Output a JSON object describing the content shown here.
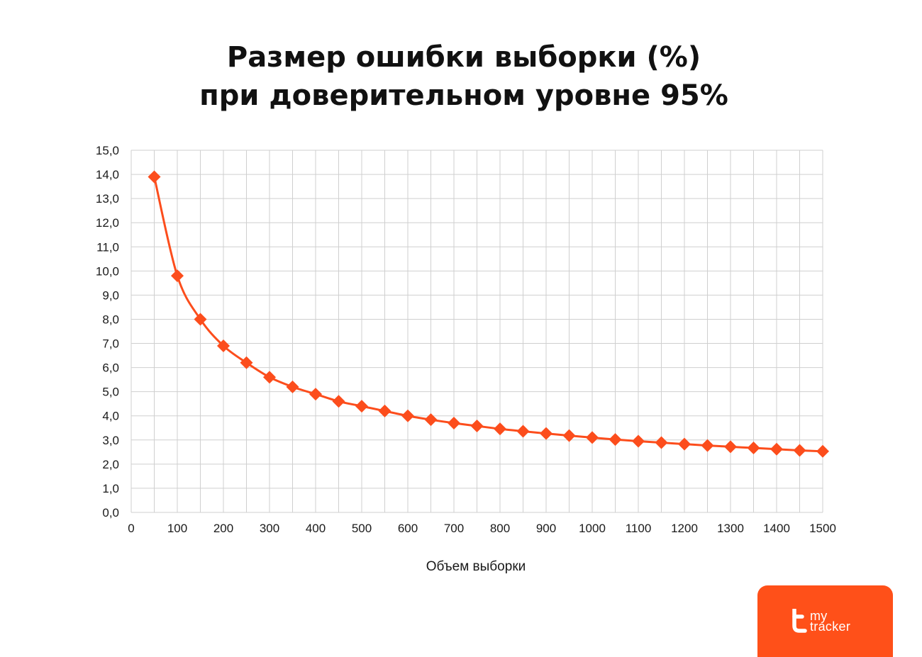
{
  "colors": {
    "series": "#fc4d1c",
    "grid": "#cfcfcf",
    "badge": "#ff5019",
    "text": "#1a1a1a"
  },
  "logo": {
    "line1": "my",
    "line2": "tracker",
    "icon": "mytracker-logo-icon"
  },
  "chart_data": {
    "type": "line",
    "title_lines": [
      "Размер ошибки выборки (%)",
      "при доверительном уровне 95%"
    ],
    "xlabel": "Объем выборки",
    "ylabel": "",
    "xlim": [
      0,
      1500
    ],
    "ylim": [
      0,
      15
    ],
    "x_tick_step": 50,
    "y_tick_step": 1,
    "x_tick_labels": [
      {
        "value": 0,
        "label": "0"
      },
      {
        "value": 100,
        "label": "100"
      },
      {
        "value": 200,
        "label": "200"
      },
      {
        "value": 300,
        "label": "300"
      },
      {
        "value": 400,
        "label": "400"
      },
      {
        "value": 500,
        "label": "500"
      },
      {
        "value": 600,
        "label": "600"
      },
      {
        "value": 700,
        "label": "700"
      },
      {
        "value": 800,
        "label": "800"
      },
      {
        "value": 900,
        "label": "900"
      },
      {
        "value": 1000,
        "label": "1000"
      },
      {
        "value": 1100,
        "label": "1100"
      },
      {
        "value": 1200,
        "label": "1200"
      },
      {
        "value": 1300,
        "label": "1300"
      },
      {
        "value": 1400,
        "label": "1400"
      },
      {
        "value": 1500,
        "label": "1500"
      }
    ],
    "y_tick_labels": [
      "0,0",
      "1,0",
      "2,0",
      "3,0",
      "4,0",
      "5,0",
      "6,0",
      "7,0",
      "8,0",
      "9,0",
      "10,0",
      "11,0",
      "12,0",
      "13,0",
      "14,0",
      "15,0"
    ],
    "grid": true,
    "marker": "diamond",
    "smooth": true,
    "series": [
      {
        "x": [
          50,
          100,
          150,
          200,
          250,
          300,
          350,
          400,
          450,
          500,
          550,
          600,
          650,
          700,
          750,
          800,
          850,
          900,
          950,
          1000,
          1050,
          1100,
          1150,
          1200,
          1250,
          1300,
          1350,
          1400,
          1450,
          1500
        ],
        "values": [
          13.9,
          9.8,
          8.0,
          6.9,
          6.2,
          5.6,
          5.2,
          4.9,
          4.6,
          4.4,
          4.2,
          4.0,
          3.84,
          3.7,
          3.58,
          3.46,
          3.36,
          3.27,
          3.18,
          3.1,
          3.02,
          2.95,
          2.89,
          2.83,
          2.77,
          2.72,
          2.67,
          2.62,
          2.57,
          2.53
        ]
      }
    ]
  }
}
